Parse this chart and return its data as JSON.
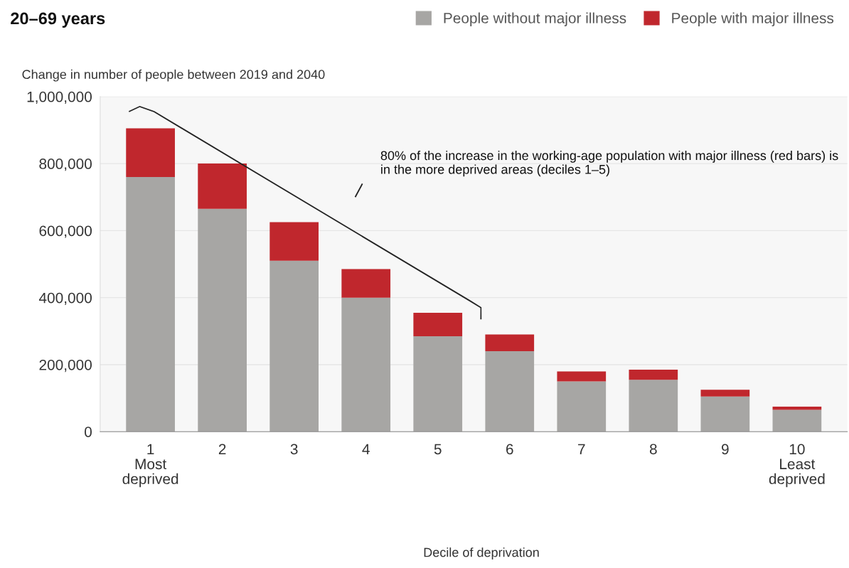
{
  "chart_data": {
    "type": "bar",
    "stacked": true,
    "title": "20–69 years",
    "ylabel": "Change in number of people between 2019 and 2040",
    "xlabel": "Decile of deprivation",
    "categories": [
      "1\nMost\ndeprived",
      "2",
      "3",
      "4",
      "5",
      "6",
      "7",
      "8",
      "9",
      "10\nLeast\ndeprived"
    ],
    "series": [
      {
        "name": "People without major illness",
        "color": "#a7a6a4",
        "values": [
          760000,
          665000,
          510000,
          400000,
          285000,
          240000,
          150000,
          155000,
          105000,
          65000
        ]
      },
      {
        "name": "People with major illness",
        "color": "#c0272d",
        "values": [
          145000,
          135000,
          115000,
          85000,
          70000,
          50000,
          30000,
          30000,
          20000,
          10000
        ]
      }
    ],
    "ylim": [
      0,
      1000000
    ],
    "yticks": [
      {
        "value": 0,
        "label": "0"
      },
      {
        "value": 200000,
        "label": "200,000"
      },
      {
        "value": 400000,
        "label": "400,000"
      },
      {
        "value": 600000,
        "label": "600,000"
      },
      {
        "value": 800000,
        "label": "800,000"
      },
      {
        "value": 1000000,
        "label": "1,000,000"
      }
    ],
    "grid": "y",
    "legend": "top right",
    "annotations": [
      "80% of the increase in the working-age population with major illness (red bars) is in the more deprived areas (deciles 1–5)"
    ]
  }
}
